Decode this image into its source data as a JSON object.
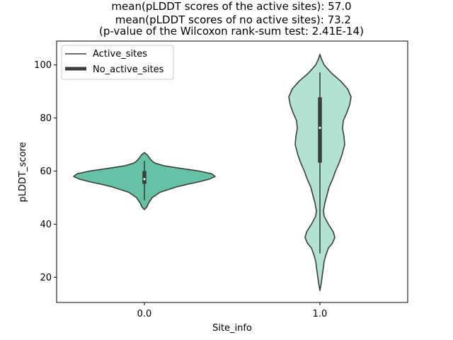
{
  "chart_data": {
    "type": "violin",
    "title_lines": [
      "mean(pLDDT scores of the active sites): 57.0",
      " mean(pLDDT scores of no active sites): 73.2",
      "(p-value of the Wilcoxon rank-sum test: 2.41E-14)"
    ],
    "xlabel": "Site_info",
    "ylabel": "pLDDT_score",
    "categories": [
      "0.0",
      "1.0"
    ],
    "ylim": [
      10.5,
      109
    ],
    "yticks": [
      20,
      40,
      60,
      80,
      100
    ],
    "legend": {
      "position": "top-left",
      "entries": [
        {
          "label": "Active_sites",
          "style": "thin"
        },
        {
          "label": "No_active_sites",
          "style": "thick"
        }
      ]
    },
    "series": [
      {
        "category": "0.0",
        "fill": "#66c2a5",
        "edge": "#3d3d3d",
        "median": 57.0,
        "q1": 55.2,
        "q3": 60.0,
        "whisker_low": 49,
        "whisker_high": 63.8,
        "density": [
          [
            45.5,
            0.0
          ],
          [
            46.5,
            0.035
          ],
          [
            48,
            0.06
          ],
          [
            50,
            0.11
          ],
          [
            52,
            0.22
          ],
          [
            54,
            0.45
          ],
          [
            55,
            0.6
          ],
          [
            56,
            0.78
          ],
          [
            57,
            0.92
          ],
          [
            58,
            1.0
          ],
          [
            59,
            0.95
          ],
          [
            60,
            0.78
          ],
          [
            61,
            0.52
          ],
          [
            62,
            0.28
          ],
          [
            63,
            0.15
          ],
          [
            64,
            0.1
          ],
          [
            65,
            0.07
          ],
          [
            66,
            0.045
          ],
          [
            67,
            0.0
          ]
        ]
      },
      {
        "category": "1.0",
        "fill": "#b2e2d2",
        "edge": "#3d3d3d",
        "median": 76.3,
        "q1": 63.2,
        "q3": 87.8,
        "whisker_low": 29,
        "whisker_high": 97.2,
        "density": [
          [
            15,
            0.0
          ],
          [
            18,
            0.02
          ],
          [
            22,
            0.04
          ],
          [
            26,
            0.06
          ],
          [
            28,
            0.08
          ],
          [
            31,
            0.12
          ],
          [
            33,
            0.18
          ],
          [
            35,
            0.21
          ],
          [
            37,
            0.19
          ],
          [
            40,
            0.12
          ],
          [
            43,
            0.06
          ],
          [
            45,
            0.05
          ],
          [
            48,
            0.07
          ],
          [
            51,
            0.1
          ],
          [
            54,
            0.13
          ],
          [
            57,
            0.18
          ],
          [
            60,
            0.22
          ],
          [
            63,
            0.27
          ],
          [
            66,
            0.31
          ],
          [
            70,
            0.35
          ],
          [
            73,
            0.34
          ],
          [
            76,
            0.32
          ],
          [
            79,
            0.33
          ],
          [
            82,
            0.38
          ],
          [
            85,
            0.42
          ],
          [
            88,
            0.44
          ],
          [
            91,
            0.39
          ],
          [
            94,
            0.29
          ],
          [
            97,
            0.16
          ],
          [
            100,
            0.06
          ],
          [
            102,
            0.025
          ],
          [
            104,
            0.0
          ]
        ]
      }
    ]
  }
}
